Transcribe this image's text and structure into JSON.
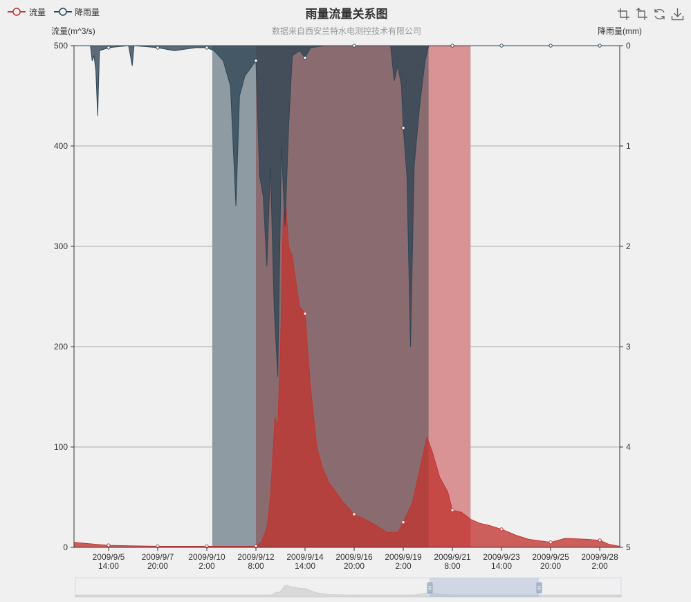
{
  "legend": [
    {
      "label": "流量",
      "color": "#c23531"
    },
    {
      "label": "降雨量",
      "color": "#2f4554"
    }
  ],
  "title": "雨量流量关系图",
  "subtitle": "数据来自西安兰特水电测控技术有限公司",
  "toolbox": [
    "zoom-icon",
    "zoom-reset-icon",
    "restore-icon",
    "save-image-icon"
  ],
  "colors": {
    "flow": "#c23531",
    "rain": "#2f4554",
    "markArea1": "#8f9ba3",
    "markArea2": "#8a6c70",
    "markArea3": "#d99394",
    "background": "#f0f0f0"
  },
  "chart_data": {
    "type": "area",
    "yAxisLeft": {
      "name": "流量(m^3/s)",
      "min": 0,
      "max": 500,
      "ticks": [
        0,
        100,
        200,
        300,
        400,
        500
      ]
    },
    "yAxisRight": {
      "name": "降雨量(mm)",
      "min": 0,
      "max": 5,
      "inverse": true,
      "ticks": [
        0,
        1,
        2,
        3,
        4,
        5
      ]
    },
    "xAxis": {
      "start": "2009/9/4 0:00",
      "end": "2009/9/29 0:00",
      "tickLabels": [
        [
          "2009/9/5",
          "14:00"
        ],
        [
          "2009/9/7",
          "20:00"
        ],
        [
          "2009/9/10",
          "2:00"
        ],
        [
          "2009/9/12",
          "8:00"
        ],
        [
          "2009/9/14",
          "14:00"
        ],
        [
          "2009/9/16",
          "20:00"
        ],
        [
          "2009/9/19",
          "2:00"
        ],
        [
          "2009/9/21",
          "8:00"
        ],
        [
          "2009/9/23",
          "14:00"
        ],
        [
          "2009/9/25",
          "20:00"
        ],
        [
          "2009/9/28",
          "2:00"
        ]
      ],
      "tickTimes": [
        "2009/9/5 14:00",
        "2009/9/7 20:00",
        "2009/9/10 2:00",
        "2009/9/12 8:00",
        "2009/9/14 14:00",
        "2009/9/16 20:00",
        "2009/9/19 2:00",
        "2009/9/21 8:00",
        "2009/9/23 14:00",
        "2009/9/25 20:00",
        "2009/9/28 2:00"
      ]
    },
    "markAreas": [
      {
        "from": "2009/9/10 8:00",
        "to": "2009/9/12 8:00"
      },
      {
        "from": "2009/9/12 8:00",
        "to": "2009/9/20 6:00"
      },
      {
        "from": "2009/9/20 6:00",
        "to": "2009/9/22 4:00"
      }
    ],
    "series": [
      {
        "name": "流量",
        "axis": "left",
        "points": [
          [
            "2009/9/4 0:00",
            5
          ],
          [
            "2009/9/4 12:00",
            4
          ],
          [
            "2009/9/5 0:00",
            3
          ],
          [
            "2009/9/5 14:00",
            2
          ],
          [
            "2009/9/6 12:00",
            1.5
          ],
          [
            "2009/9/7 20:00",
            1
          ],
          [
            "2009/9/9 0:00",
            1
          ],
          [
            "2009/9/10 2:00",
            1
          ],
          [
            "2009/9/11 0:00",
            1
          ],
          [
            "2009/9/12 8:00",
            1
          ],
          [
            "2009/9/12 14:00",
            5
          ],
          [
            "2009/9/12 20:00",
            20
          ],
          [
            "2009/9/13 0:00",
            50
          ],
          [
            "2009/9/13 3:00",
            100
          ],
          [
            "2009/9/13 5:00",
            130
          ],
          [
            "2009/9/13 8:00",
            120
          ],
          [
            "2009/9/13 11:00",
            200
          ],
          [
            "2009/9/13 14:00",
            330
          ],
          [
            "2009/9/13 17:00",
            340
          ],
          [
            "2009/9/13 20:00",
            300
          ],
          [
            "2009/9/14 0:00",
            290
          ],
          [
            "2009/9/14 8:00",
            240
          ],
          [
            "2009/9/14 14:00",
            233
          ],
          [
            "2009/9/14 20:00",
            160
          ],
          [
            "2009/9/15 3:00",
            100
          ],
          [
            "2009/9/15 9:00",
            80
          ],
          [
            "2009/9/15 16:00",
            65
          ],
          [
            "2009/9/16 0:00",
            55
          ],
          [
            "2009/9/16 8:00",
            45
          ],
          [
            "2009/9/16 20:00",
            33
          ],
          [
            "2009/9/17 8:00",
            28
          ],
          [
            "2009/9/17 20:00",
            22
          ],
          [
            "2009/9/18 8:00",
            15
          ],
          [
            "2009/9/18 20:00",
            15
          ],
          [
            "2009/9/19 2:00",
            25
          ],
          [
            "2009/9/19 12:00",
            45
          ],
          [
            "2009/9/19 22:00",
            85
          ],
          [
            "2009/9/20 4:00",
            110
          ],
          [
            "2009/9/20 10:00",
            95
          ],
          [
            "2009/9/20 18:00",
            70
          ],
          [
            "2009/9/21 3:00",
            55
          ],
          [
            "2009/9/21 8:00",
            37
          ],
          [
            "2009/9/21 18:00",
            35
          ],
          [
            "2009/9/22 4:00",
            28
          ],
          [
            "2009/9/22 14:00",
            24
          ],
          [
            "2009/9/23 0:00",
            22
          ],
          [
            "2009/9/23 14:00",
            18
          ],
          [
            "2009/9/24 6:00",
            12
          ],
          [
            "2009/9/24 20:00",
            8
          ],
          [
            "2009/9/25 20:00",
            5
          ],
          [
            "2009/9/26 12:00",
            9
          ],
          [
            "2009/9/27 12:00",
            8
          ],
          [
            "2009/9/28 2:00",
            7
          ],
          [
            "2009/9/28 12:00",
            3
          ],
          [
            "2009/9/29 0:00",
            1
          ]
        ]
      },
      {
        "name": "降雨量",
        "axis": "right",
        "points": [
          [
            "2009/9/4 0:00",
            0
          ],
          [
            "2009/9/4 18:00",
            0
          ],
          [
            "2009/9/4 20:00",
            0.15
          ],
          [
            "2009/9/4 22:00",
            0.1
          ],
          [
            "2009/9/5 0:00",
            0.25
          ],
          [
            "2009/9/5 2:00",
            0.7
          ],
          [
            "2009/9/5 4:00",
            0.05
          ],
          [
            "2009/9/5 14:00",
            0.02
          ],
          [
            "2009/9/6 12:00",
            0
          ],
          [
            "2009/9/6 16:00",
            0.2
          ],
          [
            "2009/9/6 18:00",
            0
          ],
          [
            "2009/9/7 20:00",
            0.02
          ],
          [
            "2009/9/8 14:00",
            0.05
          ],
          [
            "2009/9/9 14:00",
            0.02
          ],
          [
            "2009/9/10 2:00",
            0.02
          ],
          [
            "2009/9/10 10:00",
            0.05
          ],
          [
            "2009/9/10 20:00",
            0.15
          ],
          [
            "2009/9/11 4:00",
            0.4
          ],
          [
            "2009/9/11 10:00",
            1.6
          ],
          [
            "2009/9/11 14:00",
            0.5
          ],
          [
            "2009/9/11 20:00",
            0.3
          ],
          [
            "2009/9/12 0:00",
            0.25
          ],
          [
            "2009/9/12 4:00",
            0.2
          ],
          [
            "2009/9/12 8:00",
            0.15
          ],
          [
            "2009/9/12 12:00",
            1.3
          ],
          [
            "2009/9/12 16:00",
            1.5
          ],
          [
            "2009/9/12 20:00",
            2.2
          ],
          [
            "2009/9/13 0:00",
            1.2
          ],
          [
            "2009/9/13 4:00",
            2.6
          ],
          [
            "2009/9/13 8:00",
            3.3
          ],
          [
            "2009/9/13 12:00",
            1.0
          ],
          [
            "2009/9/13 16:00",
            1.8
          ],
          [
            "2009/9/13 20:00",
            0.8
          ],
          [
            "2009/9/14 0:00",
            0.1
          ],
          [
            "2009/9/14 8:00",
            0.05
          ],
          [
            "2009/9/14 14:00",
            0.12
          ],
          [
            "2009/9/14 20:00",
            0.02
          ],
          [
            "2009/9/15 12:00",
            0
          ],
          [
            "2009/9/16 20:00",
            0
          ],
          [
            "2009/9/18 12:00",
            0
          ],
          [
            "2009/9/18 16:00",
            0.35
          ],
          [
            "2009/9/18 20:00",
            0.2
          ],
          [
            "2009/9/19 0:00",
            0.4
          ],
          [
            "2009/9/19 2:00",
            0.82
          ],
          [
            "2009/9/19 6:00",
            1.3
          ],
          [
            "2009/9/19 10:00",
            3.0
          ],
          [
            "2009/9/19 14:00",
            1.2
          ],
          [
            "2009/9/19 20:00",
            0.6
          ],
          [
            "2009/9/20 2:00",
            0.15
          ],
          [
            "2009/9/20 6:00",
            0
          ],
          [
            "2009/9/21 8:00",
            0
          ],
          [
            "2009/9/23 14:00",
            0
          ],
          [
            "2009/9/25 20:00",
            0
          ],
          [
            "2009/9/28 2:00",
            0
          ],
          [
            "2009/9/29 0:00",
            0
          ]
        ]
      }
    ]
  }
}
